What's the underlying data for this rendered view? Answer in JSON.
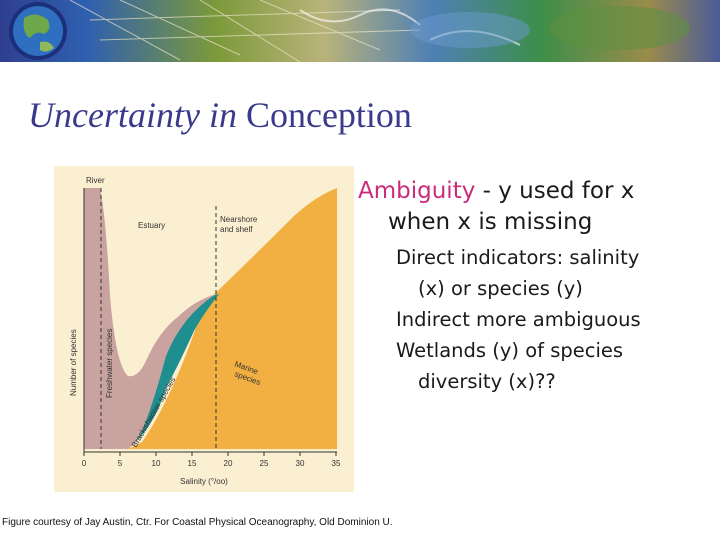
{
  "slide": {
    "title_italic": "Uncertainty in",
    "title_rest": " Conception",
    "bullet_main": {
      "term": "Ambiguity",
      "rest": " - y used for x",
      "cont": "when x is missing"
    },
    "sub_bullets": [
      {
        "line1": "Direct indicators:  salinity",
        "line2": "(x) or species (y)"
      },
      {
        "line1": "Indirect more ambiguous",
        "line2": ""
      },
      {
        "line1": "Wetlands (y) of species",
        "line2": "diversity (x)??"
      }
    ],
    "caption": "Figure courtesy of Jay Austin, Ctr. For Coastal Physical Oceanography, Old Dominion U."
  },
  "figure": {
    "labels": {
      "river": "River",
      "estuary": "Estuary",
      "nearshore_1": "Nearshore",
      "nearshore_2": "and shelf",
      "marine_1": "Marine",
      "marine_2": "species",
      "freshwater": "Freshwater species",
      "brackish": "Brackishwater species",
      "ylabel": "Number of species",
      "xlabel": "Salinity (°/oo)"
    },
    "xticks": [
      "0",
      "5",
      "10",
      "15",
      "20",
      "25",
      "30",
      "35"
    ],
    "colors": {
      "background": "#fbefd2",
      "freshwater": "#c9a3a0",
      "brackish": "#1f8e8e",
      "marine": "#f2b042"
    }
  }
}
